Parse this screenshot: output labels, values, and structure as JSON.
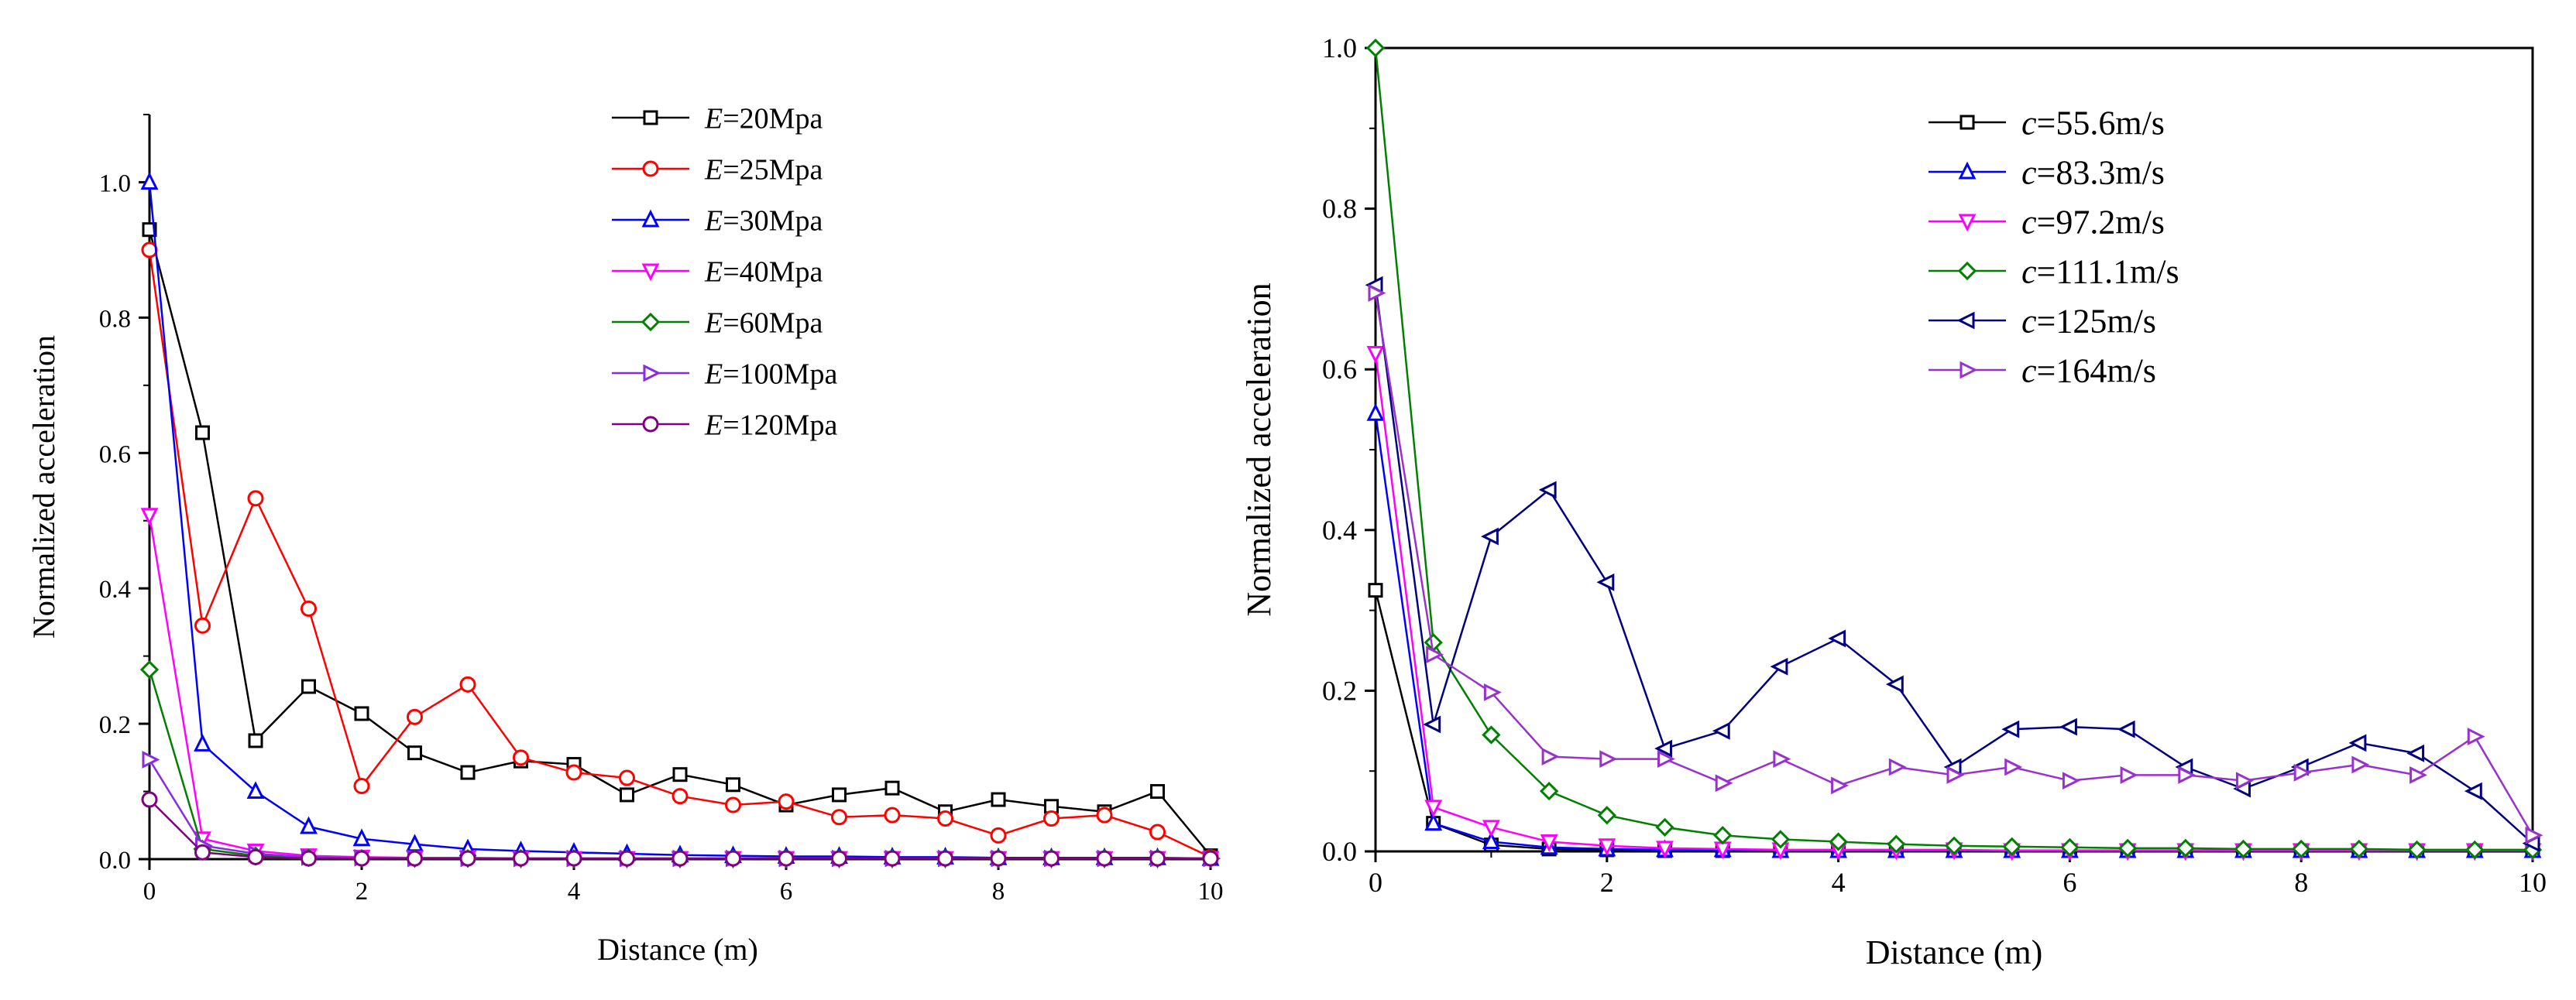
{
  "charts": [
    {
      "type": "line",
      "xlabel": "Distance (m)",
      "ylabel": "Normalized acceleration",
      "xlim": [
        0,
        10
      ],
      "ylim": [
        0,
        1.1
      ],
      "xticks": [
        "0",
        "2",
        "4",
        "6",
        "8",
        "10"
      ],
      "yticks": [
        "0.0",
        "0.2",
        "0.4",
        "0.6",
        "0.8",
        "1.0"
      ],
      "legend_position": "top-right",
      "x": [
        0,
        0.5,
        1,
        1.5,
        2,
        2.5,
        3,
        3.5,
        4,
        4.5,
        5,
        5.5,
        6,
        6.5,
        7,
        7.5,
        8,
        8.5,
        9,
        9.5,
        10
      ],
      "series": [
        {
          "var": "E",
          "rest": "=20Mpa",
          "color": "#000000",
          "marker": "square",
          "values": [
            0.93,
            0.63,
            0.175,
            0.255,
            0.215,
            0.157,
            0.128,
            0.145,
            0.14,
            0.095,
            0.125,
            0.11,
            0.08,
            0.095,
            0.105,
            0.07,
            0.088,
            0.078,
            0.07,
            0.1,
            0.005
          ]
        },
        {
          "var": "E",
          "rest": "=25Mpa",
          "color": "#ff0000",
          "marker": "circle",
          "values": [
            0.9,
            0.345,
            0.533,
            0.37,
            0.108,
            0.21,
            0.258,
            0.15,
            0.128,
            0.12,
            0.093,
            0.08,
            0.085,
            0.062,
            0.065,
            0.06,
            0.035,
            0.06,
            0.065,
            0.04,
            0.003
          ]
        },
        {
          "var": "E",
          "rest": "=30Mpa",
          "color": "#0000ff",
          "marker": "triangle-up",
          "values": [
            1.0,
            0.17,
            0.1,
            0.048,
            0.03,
            0.022,
            0.015,
            0.012,
            0.01,
            0.008,
            0.006,
            0.005,
            0.004,
            0.004,
            0.003,
            0.003,
            0.002,
            0.002,
            0.002,
            0.002,
            0.001
          ]
        },
        {
          "var": "E",
          "rest": "=40Mpa",
          "color": "#ff00ff",
          "marker": "triangle-down",
          "values": [
            0.508,
            0.03,
            0.012,
            0.005,
            0.003,
            0.002,
            0.002,
            0.001,
            0.001,
            0.001,
            0.001,
            0.001,
            0.001,
            0.001,
            0.001,
            0.001,
            0.001,
            0.001,
            0.001,
            0.001,
            0.001
          ]
        },
        {
          "var": "E",
          "rest": "=60Mpa",
          "color": "#008000",
          "marker": "diamond",
          "values": [
            0.28,
            0.015,
            0.005,
            0.002,
            0.001,
            0.001,
            0.001,
            0.001,
            0.001,
            0.001,
            0.001,
            0.001,
            0.001,
            0.001,
            0.001,
            0.001,
            0.001,
            0.001,
            0.001,
            0.001,
            0.001
          ]
        },
        {
          "var": "E",
          "rest": "=100Mpa",
          "color": "#8a2be2",
          "marker": "triangle-right",
          "values": [
            0.147,
            0.02,
            0.008,
            0.003,
            0.002,
            0.001,
            0.001,
            0.001,
            0.001,
            0.001,
            0.001,
            0.001,
            0.001,
            0.001,
            0.001,
            0.001,
            0.001,
            0.001,
            0.001,
            0.001,
            0.001
          ]
        },
        {
          "var": "E",
          "rest": "=120Mpa",
          "color": "#800080",
          "marker": "circle",
          "values": [
            0.088,
            0.01,
            0.003,
            0.001,
            0.001,
            0.001,
            0.001,
            0.001,
            0.001,
            0.001,
            0.001,
            0.001,
            0.001,
            0.001,
            0.001,
            0.001,
            0.001,
            0.001,
            0.001,
            0.001,
            0.001
          ]
        }
      ]
    },
    {
      "type": "line",
      "xlabel": "Distance (m)",
      "ylabel": "Normalized acceleration",
      "xlim": [
        0,
        10
      ],
      "ylim": [
        0,
        1.0
      ],
      "xticks": [
        "0",
        "2",
        "4",
        "6",
        "8",
        "10"
      ],
      "yticks": [
        "0.0",
        "0.2",
        "0.4",
        "0.6",
        "0.8",
        "1.0"
      ],
      "legend_position": "top-right",
      "x": [
        0,
        0.5,
        1,
        1.5,
        2,
        2.5,
        3,
        3.5,
        4,
        4.5,
        5,
        5.5,
        6,
        6.5,
        7,
        7.5,
        8,
        8.5,
        9,
        9.5,
        10
      ],
      "series": [
        {
          "var": "c",
          "rest": "=55.6m/s",
          "color": "#000000",
          "marker": "square",
          "values": [
            0.325,
            0.035,
            0.008,
            0.003,
            0.002,
            0.001,
            0.001,
            0.001,
            0.001,
            0.001,
            0.001,
            0.001,
            0.001,
            0.001,
            0.001,
            0.001,
            0.001,
            0.001,
            0.001,
            0.001,
            0.001
          ]
        },
        {
          "var": "c",
          "rest": "=83.3m/s",
          "color": "#0000ff",
          "marker": "triangle-up",
          "values": [
            0.545,
            0.035,
            0.012,
            0.005,
            0.003,
            0.002,
            0.002,
            0.001,
            0.001,
            0.001,
            0.001,
            0.001,
            0.001,
            0.001,
            0.001,
            0.001,
            0.001,
            0.001,
            0.001,
            0.001,
            0.001
          ]
        },
        {
          "var": "c",
          "rest": "=97.2m/s",
          "color": "#ff00ff",
          "marker": "triangle-down",
          "values": [
            0.62,
            0.055,
            0.03,
            0.012,
            0.007,
            0.004,
            0.003,
            0.002,
            0.002,
            0.002,
            0.002,
            0.001,
            0.001,
            0.001,
            0.001,
            0.001,
            0.001,
            0.001,
            0.001,
            0.001,
            0.001
          ]
        },
        {
          "var": "c",
          "rest": "=111.1m/s",
          "color": "#008000",
          "marker": "diamond",
          "values": [
            1.0,
            0.26,
            0.145,
            0.075,
            0.045,
            0.03,
            0.02,
            0.015,
            0.012,
            0.009,
            0.007,
            0.006,
            0.005,
            0.004,
            0.004,
            0.003,
            0.003,
            0.003,
            0.002,
            0.002,
            0.002
          ]
        },
        {
          "var": "c",
          "rest": "=125m/s",
          "color": "#000080",
          "marker": "triangle-left",
          "values": [
            0.705,
            0.158,
            0.392,
            0.45,
            0.335,
            0.128,
            0.15,
            0.23,
            0.265,
            0.208,
            0.105,
            0.152,
            0.155,
            0.152,
            0.105,
            0.078,
            0.105,
            0.135,
            0.122,
            0.075,
            0.01
          ]
        },
        {
          "var": "c",
          "rest": "=164m/s",
          "color": "#9932cc",
          "marker": "triangle-right",
          "values": [
            0.695,
            0.245,
            0.198,
            0.118,
            0.115,
            0.115,
            0.085,
            0.115,
            0.082,
            0.105,
            0.095,
            0.105,
            0.088,
            0.095,
            0.095,
            0.088,
            0.098,
            0.108,
            0.095,
            0.143,
            0.02
          ]
        }
      ]
    }
  ]
}
